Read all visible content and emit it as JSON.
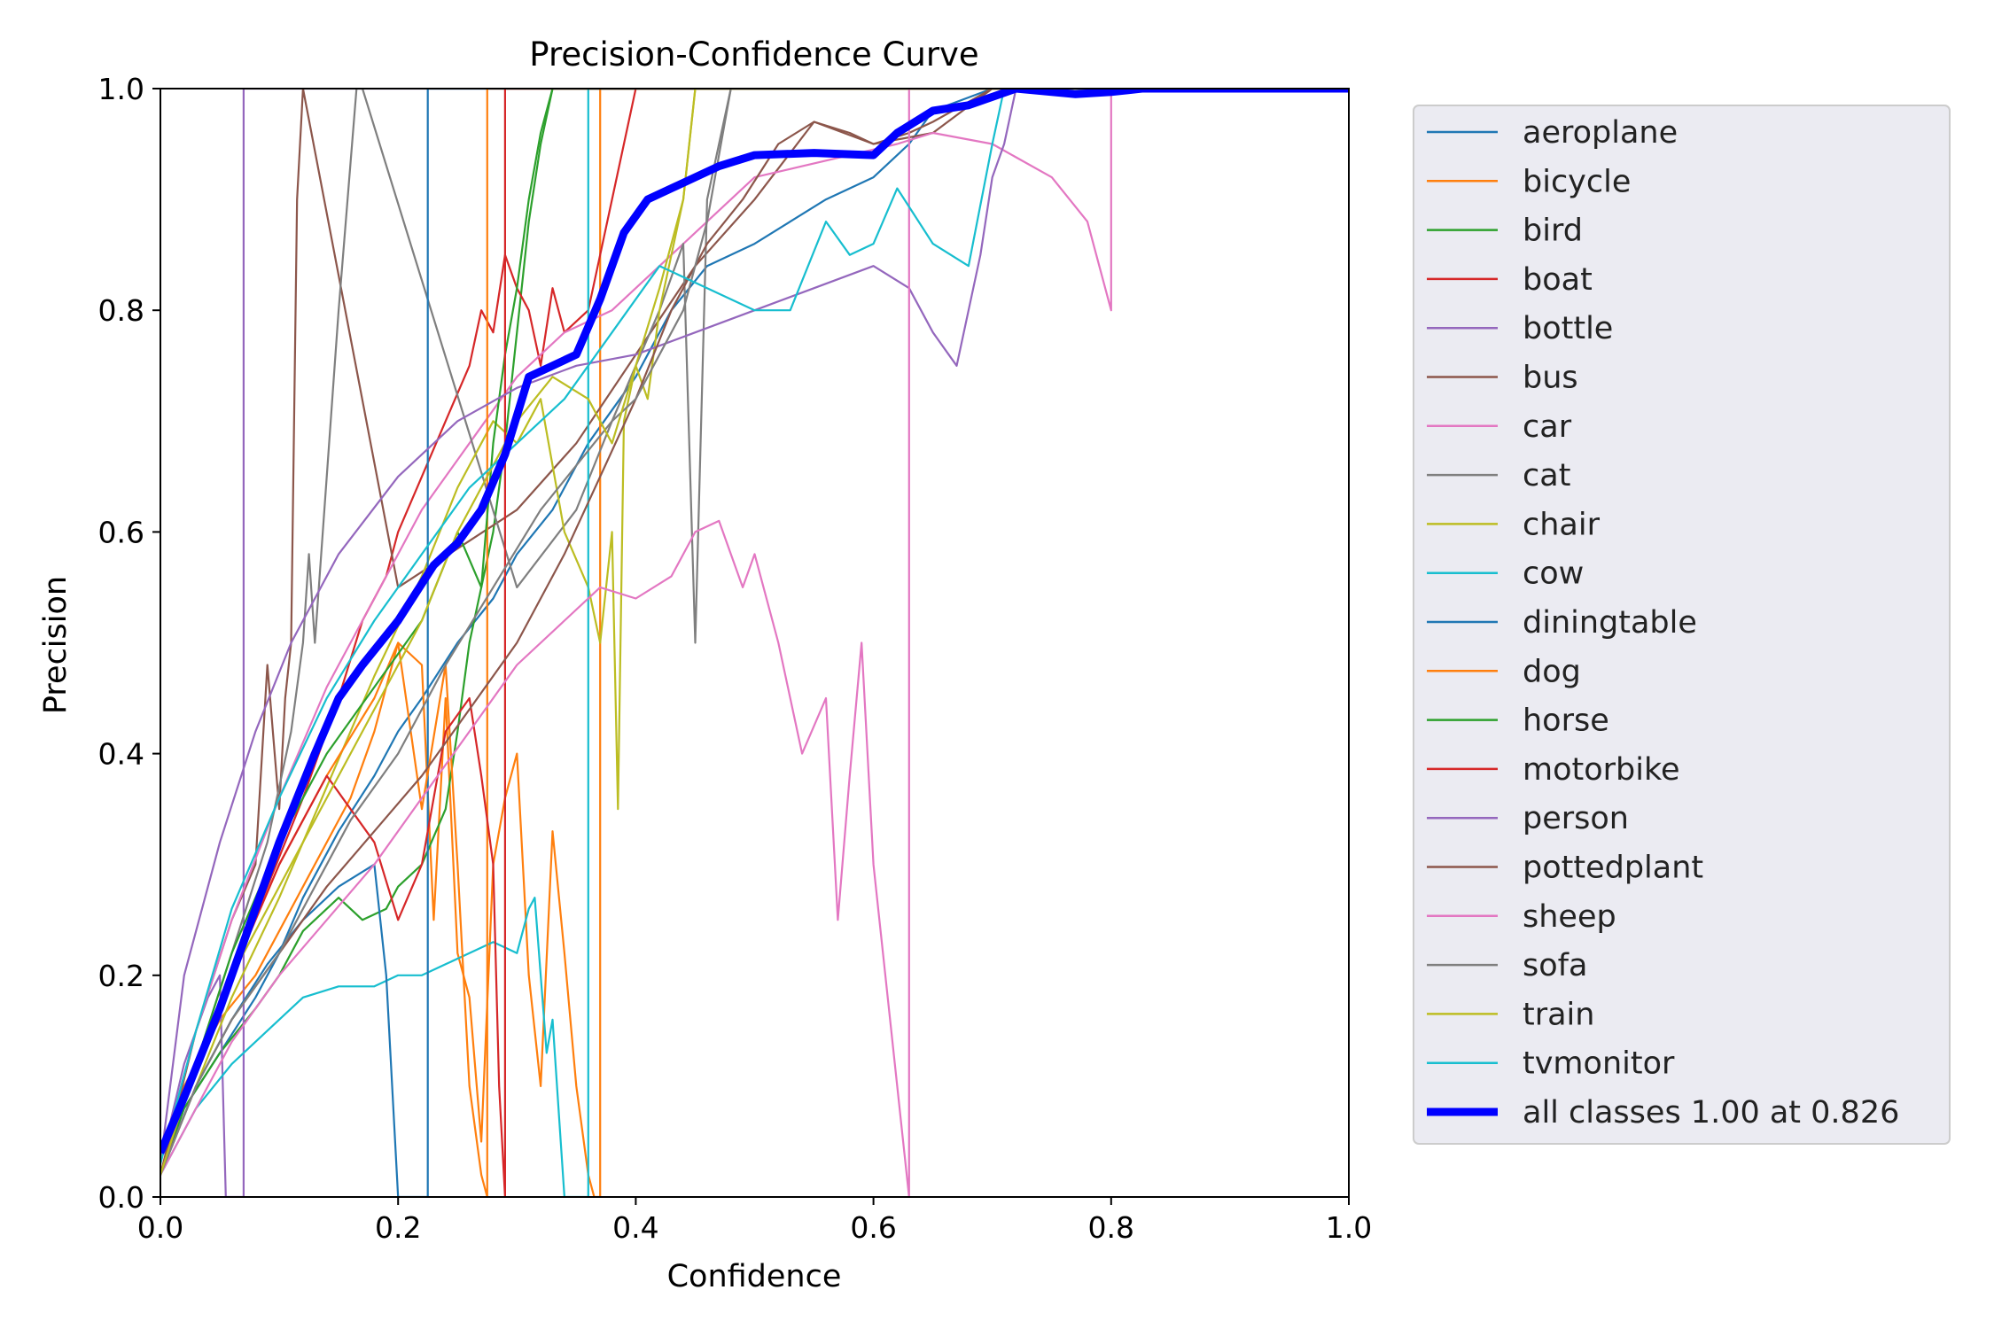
{
  "chart_data": {
    "type": "line",
    "title": "Precision-Confidence Curve",
    "xlabel": "Confidence",
    "ylabel": "Precision",
    "xlim": [
      0,
      1
    ],
    "ylim": [
      0,
      1
    ],
    "xticks": [
      "0.0",
      "0.2",
      "0.4",
      "0.6",
      "0.8",
      "1.0"
    ],
    "yticks": [
      "0.0",
      "0.2",
      "0.4",
      "0.6",
      "0.8",
      "1.0"
    ],
    "grid": false,
    "legend_position": "outside-right",
    "series": [
      {
        "name": "aeroplane",
        "color": "#1f77b4",
        "x": [
          0,
          0.02,
          0.05,
          0.08,
          0.1,
          0.12,
          0.15,
          0.18,
          0.2,
          0.22,
          0.25,
          0.28,
          0.3,
          0.33,
          0.36,
          0.4,
          0.43,
          0.46,
          0.5,
          0.53,
          0.56,
          0.6,
          0.63,
          0.65,
          0.7,
          0.75,
          0.8,
          0.85,
          0.9,
          1.0
        ],
        "values": [
          0.02,
          0.08,
          0.13,
          0.18,
          0.22,
          0.27,
          0.33,
          0.38,
          0.42,
          0.45,
          0.5,
          0.54,
          0.58,
          0.62,
          0.68,
          0.74,
          0.8,
          0.84,
          0.86,
          0.88,
          0.9,
          0.92,
          0.95,
          0.98,
          1.0,
          1.0,
          1.0,
          1.0,
          1.0,
          1.0
        ]
      },
      {
        "name": "bicycle",
        "color": "#ff7f0e",
        "x": [
          0,
          0.02,
          0.05,
          0.08,
          0.1,
          0.13,
          0.16,
          0.18,
          0.2,
          0.22,
          0.23,
          0.24,
          0.25,
          0.26,
          0.27,
          0.28,
          0.29,
          0.3,
          0.31,
          0.32,
          0.33,
          0.34,
          0.35,
          0.36,
          0.365,
          0.37,
          0.37,
          1.0
        ],
        "values": [
          0.02,
          0.1,
          0.16,
          0.2,
          0.24,
          0.3,
          0.36,
          0.42,
          0.5,
          0.48,
          0.25,
          0.45,
          0.22,
          0.18,
          0.05,
          0.3,
          0.36,
          0.4,
          0.2,
          0.1,
          0.33,
          0.22,
          0.1,
          0.02,
          0.0,
          0.0,
          1.0,
          1.0
        ]
      },
      {
        "name": "bird",
        "color": "#2ca02c",
        "x": [
          0,
          0.02,
          0.05,
          0.08,
          0.1,
          0.12,
          0.15,
          0.17,
          0.19,
          0.2,
          0.22,
          0.24,
          0.25,
          0.26,
          0.27,
          0.28,
          0.29,
          0.3,
          0.31,
          0.32,
          0.33,
          0.34,
          0.35,
          1.0
        ],
        "values": [
          0.02,
          0.08,
          0.13,
          0.17,
          0.2,
          0.24,
          0.27,
          0.25,
          0.26,
          0.28,
          0.3,
          0.35,
          0.42,
          0.5,
          0.55,
          0.6,
          0.68,
          0.78,
          0.88,
          0.95,
          1.0,
          1.0,
          1.0,
          1.0
        ]
      },
      {
        "name": "boat",
        "color": "#d62728",
        "x": [
          0,
          0.03,
          0.06,
          0.09,
          0.12,
          0.15,
          0.17,
          0.19,
          0.2,
          0.22,
          0.24,
          0.26,
          0.27,
          0.28,
          0.29,
          0.3,
          0.31,
          0.32,
          0.33,
          0.34,
          0.36,
          0.38,
          0.4,
          0.42,
          1.0
        ],
        "values": [
          0.02,
          0.12,
          0.2,
          0.28,
          0.36,
          0.45,
          0.52,
          0.56,
          0.6,
          0.65,
          0.7,
          0.75,
          0.8,
          0.78,
          0.85,
          0.82,
          0.8,
          0.75,
          0.82,
          0.78,
          0.8,
          0.9,
          1.0,
          1.0,
          1.0
        ]
      },
      {
        "name": "bottle",
        "color": "#9467bd",
        "x": [
          0,
          0.02,
          0.04,
          0.05,
          0.055,
          0.06,
          0.065,
          0.07,
          0.07,
          1.0
        ],
        "values": [
          0.03,
          0.12,
          0.18,
          0.2,
          0.0,
          0.0,
          0.0,
          0.0,
          1.0,
          1.0
        ]
      },
      {
        "name": "bus",
        "color": "#8c564b",
        "x": [
          0,
          0.03,
          0.06,
          0.08,
          0.09,
          0.1,
          0.105,
          0.11,
          0.115,
          0.12,
          0.12,
          0.2,
          0.3,
          0.35,
          0.4,
          0.45,
          0.5,
          0.55,
          0.6,
          0.65,
          0.7,
          1.0
        ],
        "values": [
          0.02,
          0.15,
          0.25,
          0.3,
          0.48,
          0.35,
          0.45,
          0.5,
          0.9,
          1.0,
          1.0,
          0.55,
          0.62,
          0.68,
          0.76,
          0.84,
          0.9,
          0.97,
          0.95,
          0.96,
          1.0,
          1.0
        ]
      },
      {
        "name": "car",
        "color": "#e377c2",
        "x": [
          0,
          0.03,
          0.06,
          0.1,
          0.14,
          0.18,
          0.22,
          0.26,
          0.3,
          0.34,
          0.38,
          0.42,
          0.46,
          0.5,
          0.54,
          0.58,
          0.62,
          0.65,
          0.7,
          0.75,
          0.78,
          0.8,
          0.8,
          1.0
        ],
        "values": [
          0.03,
          0.15,
          0.25,
          0.36,
          0.46,
          0.54,
          0.62,
          0.68,
          0.74,
          0.78,
          0.8,
          0.84,
          0.88,
          0.92,
          0.93,
          0.94,
          0.95,
          0.96,
          0.95,
          0.92,
          0.88,
          0.8,
          1.0,
          1.0
        ]
      },
      {
        "name": "cat",
        "color": "#7f7f7f",
        "x": [
          0,
          0.03,
          0.06,
          0.09,
          0.11,
          0.12,
          0.125,
          0.13,
          0.14,
          0.15,
          0.165,
          0.17,
          0.3,
          0.35,
          0.38,
          0.4,
          0.42,
          0.44,
          0.45,
          0.46,
          0.48,
          1.0
        ],
        "values": [
          0.02,
          0.12,
          0.22,
          0.32,
          0.42,
          0.5,
          0.58,
          0.5,
          0.65,
          0.8,
          1.0,
          1.0,
          0.55,
          0.62,
          0.7,
          0.75,
          0.8,
          0.86,
          0.5,
          0.9,
          1.0,
          1.0
        ]
      },
      {
        "name": "chair",
        "color": "#bcbd22",
        "x": [
          0,
          0.03,
          0.06,
          0.1,
          0.14,
          0.18,
          0.22,
          0.25,
          0.28,
          0.3,
          0.32,
          0.34,
          0.36,
          0.37,
          0.38,
          0.385,
          0.39,
          0.4,
          0.41,
          0.42,
          0.43,
          0.44,
          0.45,
          1.0
        ],
        "values": [
          0.02,
          0.1,
          0.18,
          0.27,
          0.37,
          0.47,
          0.56,
          0.64,
          0.7,
          0.68,
          0.72,
          0.6,
          0.55,
          0.5,
          0.6,
          0.35,
          0.7,
          0.75,
          0.72,
          0.8,
          0.85,
          0.9,
          1.0,
          1.0
        ]
      },
      {
        "name": "cow",
        "color": "#17becf",
        "x": [
          0,
          0.03,
          0.06,
          0.09,
          0.12,
          0.15,
          0.18,
          0.2,
          0.22,
          0.24,
          0.26,
          0.28,
          0.3,
          0.31,
          0.315,
          0.32,
          0.325,
          0.33,
          0.34,
          0.35,
          0.355,
          0.36,
          0.36,
          1.0
        ],
        "values": [
          0.02,
          0.08,
          0.12,
          0.15,
          0.18,
          0.19,
          0.19,
          0.2,
          0.2,
          0.21,
          0.22,
          0.23,
          0.22,
          0.26,
          0.27,
          0.2,
          0.13,
          0.16,
          0.0,
          0.0,
          0.0,
          0.0,
          1.0,
          1.0
        ]
      },
      {
        "name": "diningtable",
        "color": "#1f77b4",
        "x": [
          0,
          0.03,
          0.06,
          0.09,
          0.12,
          0.15,
          0.18,
          0.19,
          0.2,
          0.21,
          0.22,
          0.225,
          0.225,
          1.0
        ],
        "values": [
          0.02,
          0.1,
          0.16,
          0.21,
          0.25,
          0.28,
          0.3,
          0.2,
          0.0,
          0.0,
          0.0,
          0.0,
          1.0,
          1.0
        ]
      },
      {
        "name": "dog",
        "color": "#ff7f0e",
        "x": [
          0,
          0.03,
          0.06,
          0.1,
          0.14,
          0.18,
          0.2,
          0.22,
          0.24,
          0.25,
          0.26,
          0.27,
          0.275,
          0.275,
          1.0
        ],
        "values": [
          0.02,
          0.12,
          0.2,
          0.3,
          0.38,
          0.45,
          0.5,
          0.35,
          0.48,
          0.3,
          0.1,
          0.02,
          0.0,
          1.0,
          1.0
        ]
      },
      {
        "name": "horse",
        "color": "#2ca02c",
        "x": [
          0,
          0.03,
          0.06,
          0.1,
          0.14,
          0.18,
          0.22,
          0.25,
          0.27,
          0.28,
          0.29,
          0.3,
          0.31,
          0.32,
          0.33,
          1.0
        ],
        "values": [
          0.02,
          0.12,
          0.22,
          0.32,
          0.4,
          0.46,
          0.52,
          0.6,
          0.55,
          0.68,
          0.76,
          0.82,
          0.9,
          0.96,
          1.0,
          1.0
        ]
      },
      {
        "name": "motorbike",
        "color": "#d62728",
        "x": [
          0,
          0.03,
          0.06,
          0.1,
          0.14,
          0.18,
          0.2,
          0.22,
          0.24,
          0.26,
          0.27,
          0.28,
          0.285,
          0.29,
          0.29,
          1.0
        ],
        "values": [
          0.02,
          0.12,
          0.2,
          0.3,
          0.38,
          0.32,
          0.25,
          0.3,
          0.42,
          0.45,
          0.38,
          0.3,
          0.1,
          0.0,
          1.0,
          1.0
        ]
      },
      {
        "name": "person",
        "color": "#9467bd",
        "x": [
          0,
          0.02,
          0.05,
          0.08,
          0.11,
          0.15,
          0.2,
          0.25,
          0.3,
          0.35,
          0.4,
          0.45,
          0.5,
          0.55,
          0.6,
          0.63,
          0.65,
          0.67,
          0.68,
          0.69,
          0.7,
          0.71,
          0.72,
          1.0
        ],
        "values": [
          0.03,
          0.2,
          0.32,
          0.42,
          0.5,
          0.58,
          0.65,
          0.7,
          0.73,
          0.75,
          0.76,
          0.78,
          0.8,
          0.82,
          0.84,
          0.82,
          0.78,
          0.75,
          0.8,
          0.85,
          0.92,
          0.95,
          1.0,
          1.0
        ]
      },
      {
        "name": "pottedplant",
        "color": "#8c564b",
        "x": [
          0,
          0.03,
          0.06,
          0.1,
          0.14,
          0.18,
          0.22,
          0.26,
          0.3,
          0.34,
          0.37,
          0.4,
          0.43,
          0.46,
          0.49,
          0.52,
          0.55,
          0.58,
          0.6,
          0.63,
          0.65,
          0.7,
          1.0
        ],
        "values": [
          0.02,
          0.1,
          0.16,
          0.22,
          0.28,
          0.33,
          0.38,
          0.44,
          0.5,
          0.58,
          0.65,
          0.72,
          0.8,
          0.86,
          0.9,
          0.95,
          0.97,
          0.96,
          0.95,
          0.96,
          0.97,
          1.0,
          1.0
        ]
      },
      {
        "name": "sheep",
        "color": "#e377c2",
        "x": [
          0,
          0.03,
          0.06,
          0.1,
          0.14,
          0.18,
          0.22,
          0.26,
          0.3,
          0.34,
          0.37,
          0.4,
          0.43,
          0.45,
          0.47,
          0.49,
          0.5,
          0.52,
          0.54,
          0.56,
          0.57,
          0.58,
          0.59,
          0.6,
          0.61,
          0.62,
          0.625,
          0.63,
          0.63,
          1.0
        ],
        "values": [
          0.02,
          0.08,
          0.14,
          0.2,
          0.25,
          0.3,
          0.36,
          0.42,
          0.48,
          0.52,
          0.55,
          0.54,
          0.56,
          0.6,
          0.61,
          0.55,
          0.58,
          0.5,
          0.4,
          0.45,
          0.25,
          0.38,
          0.5,
          0.3,
          0.2,
          0.1,
          0.05,
          0.0,
          1.0,
          1.0
        ]
      },
      {
        "name": "sofa",
        "color": "#7f7f7f",
        "x": [
          0,
          0.03,
          0.06,
          0.1,
          0.13,
          0.16,
          0.2,
          0.24,
          0.28,
          0.32,
          0.35,
          0.38,
          0.4,
          0.42,
          0.44,
          0.46,
          0.48,
          1.0
        ],
        "values": [
          0.02,
          0.1,
          0.16,
          0.22,
          0.28,
          0.34,
          0.4,
          0.48,
          0.55,
          0.62,
          0.66,
          0.7,
          0.72,
          0.76,
          0.8,
          0.88,
          1.0,
          1.0
        ]
      },
      {
        "name": "train",
        "color": "#bcbd22",
        "x": [
          0,
          0.03,
          0.06,
          0.1,
          0.14,
          0.18,
          0.22,
          0.25,
          0.28,
          0.3,
          0.33,
          0.36,
          0.38,
          0.4,
          0.42,
          0.44,
          0.45,
          1.0
        ],
        "values": [
          0.02,
          0.12,
          0.2,
          0.28,
          0.36,
          0.44,
          0.52,
          0.6,
          0.66,
          0.7,
          0.74,
          0.72,
          0.68,
          0.75,
          0.82,
          0.9,
          1.0,
          1.0
        ]
      },
      {
        "name": "tvmonitor",
        "color": "#17becf",
        "x": [
          0,
          0.03,
          0.06,
          0.1,
          0.14,
          0.18,
          0.22,
          0.26,
          0.3,
          0.34,
          0.38,
          0.42,
          0.46,
          0.5,
          0.53,
          0.56,
          0.58,
          0.6,
          0.62,
          0.65,
          0.68,
          0.7,
          0.71,
          1.0
        ],
        "values": [
          0.03,
          0.15,
          0.26,
          0.36,
          0.45,
          0.52,
          0.58,
          0.64,
          0.68,
          0.72,
          0.78,
          0.84,
          0.82,
          0.8,
          0.8,
          0.88,
          0.85,
          0.86,
          0.91,
          0.86,
          0.84,
          0.95,
          1.0,
          1.0
        ]
      },
      {
        "name": "all classes 1.00 at 0.826",
        "color": "#0000ff",
        "x": [
          0,
          0.02,
          0.05,
          0.08,
          0.1,
          0.13,
          0.15,
          0.17,
          0.2,
          0.23,
          0.25,
          0.27,
          0.29,
          0.31,
          0.33,
          0.35,
          0.37,
          0.39,
          0.41,
          0.43,
          0.45,
          0.47,
          0.5,
          0.55,
          0.6,
          0.62,
          0.65,
          0.68,
          0.72,
          0.77,
          0.8,
          0.826,
          1.0
        ],
        "values": [
          0.04,
          0.09,
          0.17,
          0.26,
          0.32,
          0.4,
          0.45,
          0.48,
          0.52,
          0.57,
          0.59,
          0.62,
          0.67,
          0.74,
          0.75,
          0.76,
          0.81,
          0.87,
          0.9,
          0.91,
          0.92,
          0.93,
          0.94,
          0.942,
          0.94,
          0.96,
          0.98,
          0.985,
          1.0,
          0.995,
          0.997,
          1.0,
          1.0
        ]
      }
    ]
  }
}
